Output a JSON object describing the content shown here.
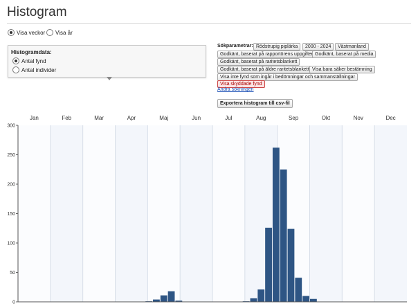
{
  "page_title": "Histogram",
  "view_options": [
    {
      "label": "Visa veckor",
      "selected": true
    },
    {
      "label": "Visa år",
      "selected": false
    }
  ],
  "histogram_data": {
    "title": "Histogramdata:",
    "options": [
      {
        "label": "Antal fynd",
        "selected": true
      },
      {
        "label": "Antal individer",
        "selected": false
      }
    ]
  },
  "search_params": {
    "label": "Sökparametrar:",
    "chips": [
      "Rödstrupig piplärka",
      "2000 - 2024",
      "Västmanland",
      "Godkänt, baserat på rapportörens uppgifter",
      "Godkänt, baserat på media",
      "Godkänt, baserat på raritetsblankett",
      "Godkänt, baserat på äldre raritetsblankett",
      "Visa bara säker bestämning",
      "Visa inte fynd som ingår i bedömningar och sammanställningar",
      "Visa skyddade fynd"
    ],
    "highlight_color": "#a00000",
    "change_link": "Ändra sökningen"
  },
  "export_label": "Exportera histogram till csv-fil",
  "chart_data": {
    "type": "bar",
    "months": [
      "Jan",
      "Feb",
      "Mar",
      "Apr",
      "Maj",
      "Jun",
      "Jul",
      "Aug",
      "Sep",
      "Okt",
      "Nov",
      "Dec"
    ],
    "x_unit": "week",
    "ylim": [
      0,
      300
    ],
    "yticks": [
      0,
      50,
      100,
      150,
      200,
      250,
      300
    ],
    "grid": true,
    "bar_color": "#2e5584",
    "bars": [
      {
        "week": 18,
        "value": 1
      },
      {
        "week": 19,
        "value": 4
      },
      {
        "week": 20,
        "value": 11
      },
      {
        "week": 21,
        "value": 18
      },
      {
        "week": 22,
        "value": 2
      },
      {
        "week": 31,
        "value": 1
      },
      {
        "week": 32,
        "value": 6
      },
      {
        "week": 33,
        "value": 21
      },
      {
        "week": 34,
        "value": 126
      },
      {
        "week": 35,
        "value": 262
      },
      {
        "week": 36,
        "value": 225
      },
      {
        "week": 37,
        "value": 124
      },
      {
        "week": 38,
        "value": 41
      },
      {
        "week": 39,
        "value": 10
      },
      {
        "week": 40,
        "value": 5
      }
    ]
  }
}
